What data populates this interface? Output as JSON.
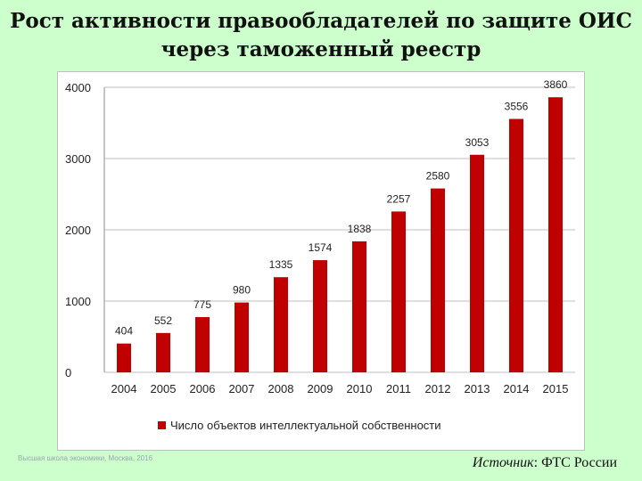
{
  "slide": {
    "title_line1": "Рост активности правообладателей по защите ОИС",
    "title_line2": "через таможенный реестр",
    "footer_faded": "Высшая школа экономики, Москва, 2016",
    "source_label": "Источник",
    "source_value": ": ФТС России"
  },
  "colors": {
    "background": "#ccffcc",
    "bar": "#c00000",
    "gridline": "#bfbfbf"
  },
  "chart_data": {
    "type": "bar",
    "categories": [
      "2004",
      "2005",
      "2006",
      "2007",
      "2008",
      "2009",
      "2010",
      "2011",
      "2012",
      "2013",
      "2014",
      "2015"
    ],
    "series": [
      {
        "name": "Число объектов интеллектуальной собственности",
        "values": [
          404,
          552,
          775,
          980,
          1335,
          1574,
          1838,
          2257,
          2580,
          3053,
          3556,
          3860
        ],
        "data_labels": [
          "404",
          "552",
          "775",
          "980",
          "1335",
          "1574",
          "1838",
          "2257",
          "2580",
          "3053",
          "3556",
          "3860"
        ]
      }
    ],
    "ylim": [
      0,
      4000
    ],
    "yticks": [
      "0",
      "1000",
      "2000",
      "3000",
      "4000"
    ],
    "title": "",
    "xlabel": "",
    "ylabel": "",
    "grid": true,
    "legend_position": "bottom"
  }
}
